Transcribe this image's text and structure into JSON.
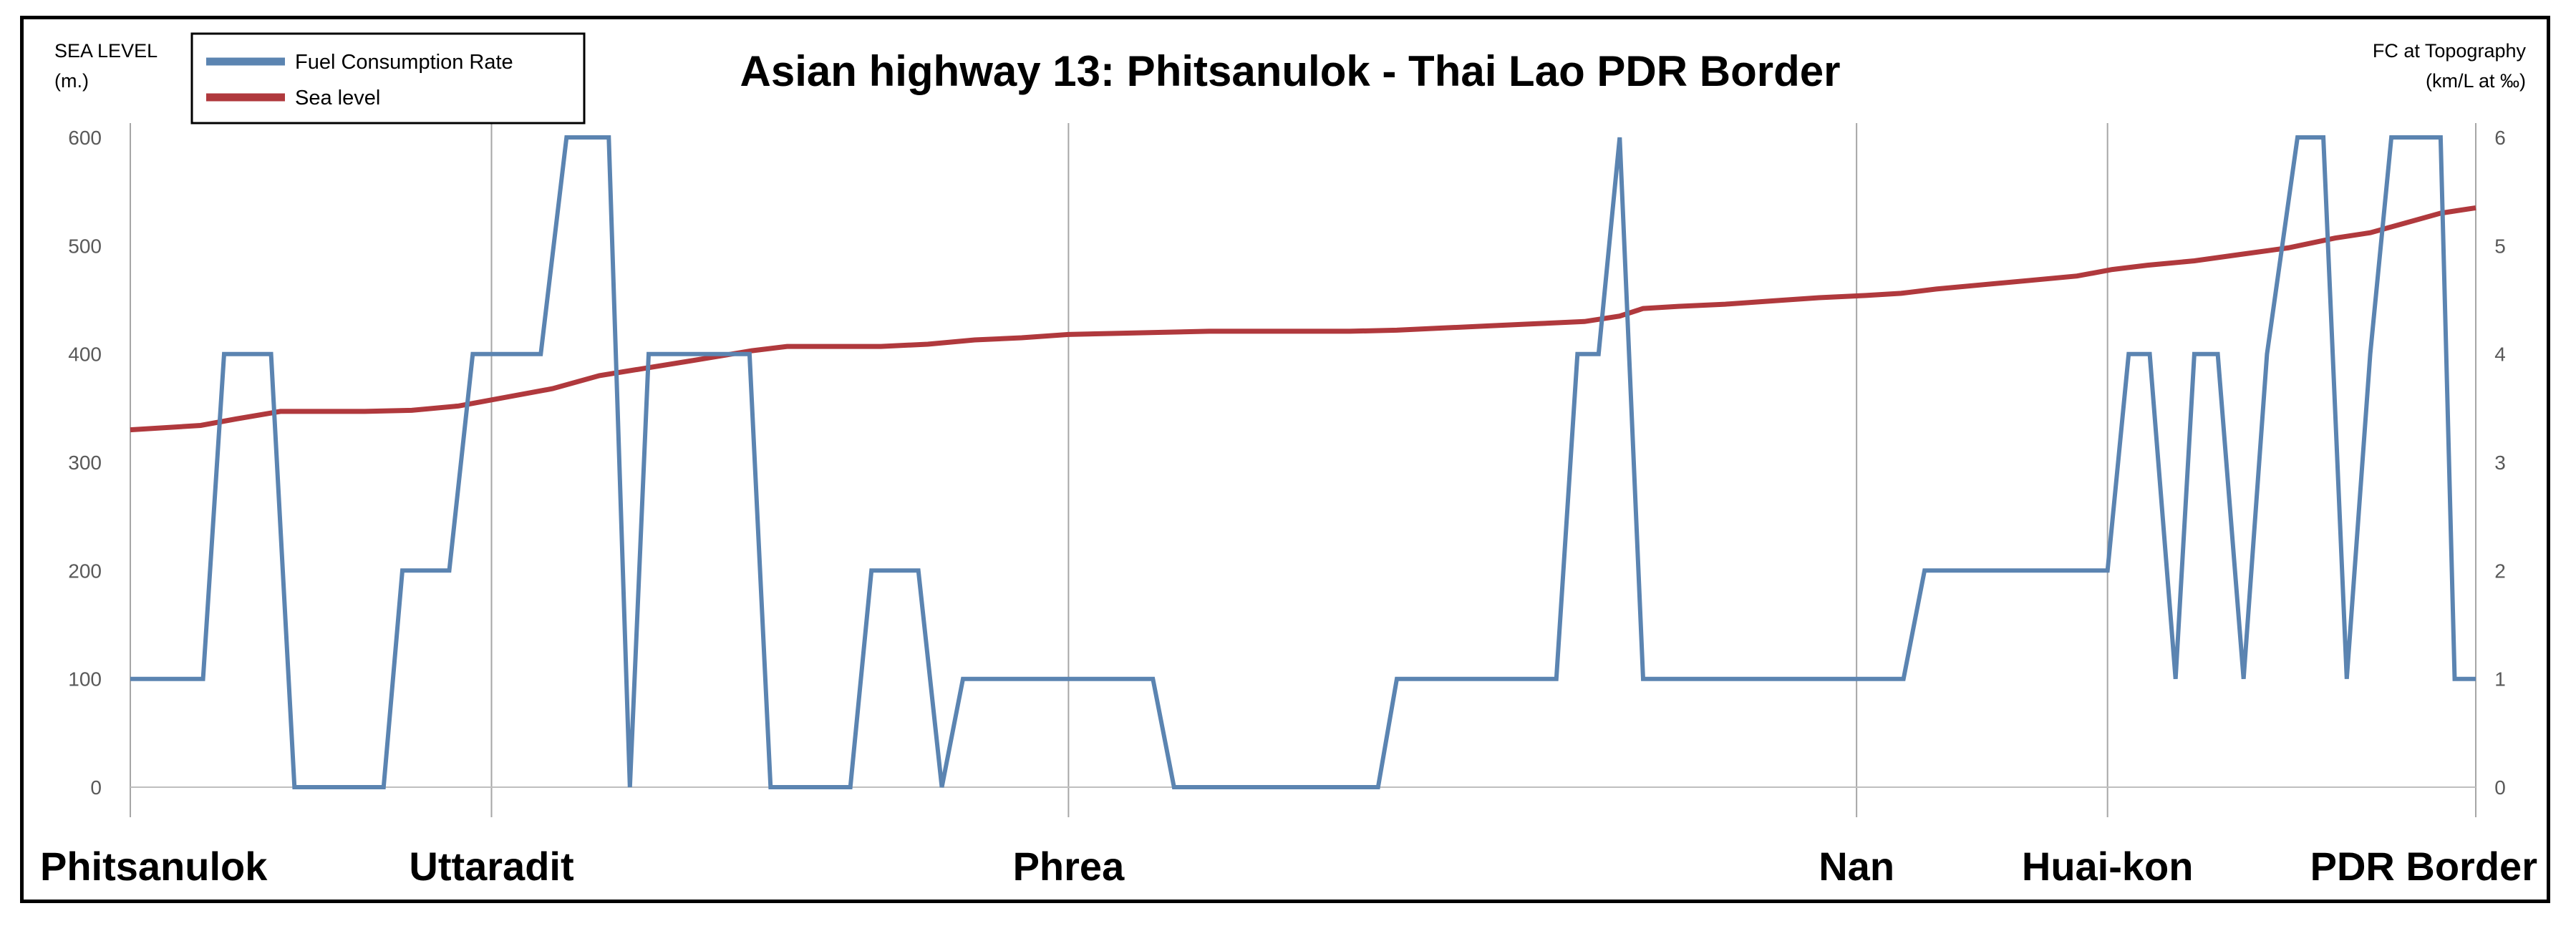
{
  "chart_data": {
    "type": "line",
    "title": "Asian highway 13: Phitsanulok - Thai Lao PDR Border",
    "y_left_label_lines": [
      "SEA LEVEL",
      "(m.)"
    ],
    "y_right_label_lines": [
      "FC at Topography",
      "(km/L at ‰)"
    ],
    "y_left_ticks": [
      "0",
      "100",
      "200",
      "300",
      "400",
      "500",
      "600"
    ],
    "y_right_ticks": [
      "0",
      "1",
      "2",
      "3",
      "4",
      "5",
      "6"
    ],
    "ylim_left": [
      0,
      600
    ],
    "ylim_right": [
      0,
      6
    ],
    "x_range": [
      0,
      100
    ],
    "legend_position": "top-left",
    "grid": "vertical lines at towns",
    "x_towns": [
      {
        "name": "Phitsanulok",
        "x": 0
      },
      {
        "name": "Uttaradit",
        "x": 15.4
      },
      {
        "name": "Phrea",
        "x": 40
      },
      {
        "name": "Nan",
        "x": 73.6
      },
      {
        "name": "Huai-kon",
        "x": 84.3
      },
      {
        "name": "PDR Border",
        "x": 100
      }
    ],
    "series": [
      {
        "name": "Fuel Consumption Rate",
        "color": "#5b84b1",
        "axis": "right",
        "points": [
          [
            0,
            1
          ],
          [
            3.1,
            1
          ],
          [
            4.0,
            4
          ],
          [
            6.0,
            4
          ],
          [
            7.0,
            0
          ],
          [
            10.8,
            0
          ],
          [
            11.6,
            2
          ],
          [
            13.6,
            2
          ],
          [
            14.6,
            4
          ],
          [
            17.5,
            4
          ],
          [
            18.6,
            6
          ],
          [
            20.4,
            6
          ],
          [
            21.3,
            0
          ],
          [
            22.1,
            4
          ],
          [
            26.4,
            4
          ],
          [
            27.3,
            0
          ],
          [
            30.7,
            0
          ],
          [
            31.6,
            2
          ],
          [
            33.6,
            2
          ],
          [
            34.6,
            0
          ],
          [
            35.5,
            1
          ],
          [
            43.6,
            1
          ],
          [
            44.5,
            0
          ],
          [
            53.2,
            0
          ],
          [
            54.0,
            1
          ],
          [
            60.8,
            1
          ],
          [
            61.7,
            4
          ],
          [
            62.6,
            4
          ],
          [
            63.5,
            6
          ],
          [
            64.5,
            1
          ],
          [
            75.6,
            1
          ],
          [
            76.5,
            2
          ],
          [
            84.3,
            2
          ],
          [
            85.2,
            4
          ],
          [
            86.1,
            4
          ],
          [
            87.2,
            1
          ],
          [
            88.0,
            4
          ],
          [
            89.0,
            4
          ],
          [
            90.1,
            1
          ],
          [
            91.1,
            4
          ],
          [
            92.4,
            6
          ],
          [
            93.5,
            6
          ],
          [
            94.5,
            1
          ],
          [
            95.5,
            4
          ],
          [
            96.4,
            6
          ],
          [
            98.5,
            6
          ],
          [
            99.1,
            1
          ],
          [
            100,
            1
          ]
        ]
      },
      {
        "name": "Sea level",
        "color": "#b0393d",
        "axis": "left",
        "points": [
          [
            0,
            330
          ],
          [
            3,
            334
          ],
          [
            4.5,
            340
          ],
          [
            6.4,
            347
          ],
          [
            10,
            347
          ],
          [
            12,
            348
          ],
          [
            14,
            352
          ],
          [
            16,
            360
          ],
          [
            18,
            368
          ],
          [
            20,
            380
          ],
          [
            22,
            387
          ],
          [
            24,
            394
          ],
          [
            26.5,
            403
          ],
          [
            28,
            407
          ],
          [
            32,
            407
          ],
          [
            34,
            409
          ],
          [
            36,
            413
          ],
          [
            38,
            415
          ],
          [
            40,
            418
          ],
          [
            42,
            419
          ],
          [
            44,
            420
          ],
          [
            46,
            421
          ],
          [
            48,
            421
          ],
          [
            50,
            421
          ],
          [
            52,
            421
          ],
          [
            54,
            422
          ],
          [
            56,
            424
          ],
          [
            58,
            426
          ],
          [
            60,
            428
          ],
          [
            62,
            430
          ],
          [
            63.5,
            435
          ],
          [
            64.5,
            442
          ],
          [
            66,
            444
          ],
          [
            68,
            446
          ],
          [
            70,
            449
          ],
          [
            72,
            452
          ],
          [
            74,
            454
          ],
          [
            75.5,
            456
          ],
          [
            77,
            460
          ],
          [
            79,
            464
          ],
          [
            81,
            468
          ],
          [
            83,
            472
          ],
          [
            84.5,
            478
          ],
          [
            86,
            482
          ],
          [
            88,
            486
          ],
          [
            90,
            492
          ],
          [
            92,
            498
          ],
          [
            94,
            507
          ],
          [
            95.5,
            512
          ],
          [
            97,
            521
          ],
          [
            98.5,
            530
          ],
          [
            100,
            535
          ]
        ]
      }
    ]
  }
}
